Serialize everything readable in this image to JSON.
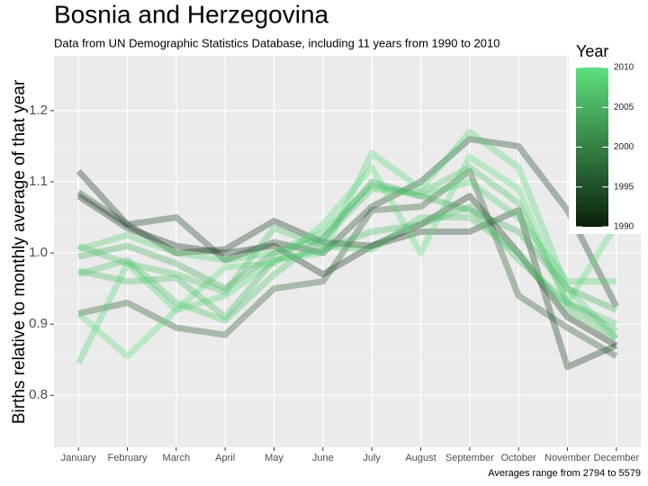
{
  "chart_data": {
    "type": "line",
    "title": "Bosnia and Herzegovina",
    "subtitle": "Data from UN Demographic Statistics Database, including 11 years from 1990 to 2010",
    "y_label": "Births relative to monthly average of that year",
    "caption": "Averages range from 2794 to 5579",
    "categories": [
      "January",
      "February",
      "March",
      "April",
      "May",
      "June",
      "July",
      "August",
      "September",
      "October",
      "November",
      "December"
    ],
    "ylim": [
      0.727,
      1.277
    ],
    "yticks": [
      0.8,
      0.9,
      {
        "value": 1.0,
        "label": "1.0"
      },
      1.1,
      1.2
    ],
    "grid": true,
    "opacity": 0.35,
    "series": [
      {
        "color": "#143018",
        "values": [
          1.08,
          1.035,
          1.01,
          1.0,
          1.01,
          0.97,
          1.01,
          1.04,
          1.08,
          1.0,
          0.91,
          0.87
        ]
      },
      {
        "color": "#1e4524",
        "values": [
          1.085,
          1.04,
          1.05,
          0.99,
          1.015,
          1.0,
          1.065,
          1.1,
          1.16,
          1.15,
          1.06,
          0.925
        ]
      },
      {
        "color": "#1a3c20",
        "values": [
          1.115,
          1.04,
          1.0,
          1.005,
          1.045,
          1.015,
          1.01,
          1.03,
          1.03,
          1.06,
          0.84,
          0.87
        ]
      },
      {
        "color": "#2a5c32",
        "values": [
          0.915,
          0.93,
          0.895,
          0.885,
          0.95,
          0.96,
          1.06,
          1.065,
          1.115,
          0.94,
          0.895,
          0.855
        ]
      },
      {
        "color": "#57d777",
        "values": [
          0.845,
          0.985,
          0.92,
          0.94,
          0.99,
          1.0,
          1.14,
          1.09,
          1.17,
          1.12,
          0.95,
          0.88
        ]
      },
      {
        "color": "#55d274",
        "values": [
          1.005,
          1.025,
          1.0,
          0.99,
          1.0,
          1.03,
          1.095,
          1.08,
          1.1,
          1.05,
          0.96,
          0.96
        ]
      },
      {
        "color": "#5bdf7c",
        "values": [
          0.915,
          0.855,
          0.92,
          0.98,
          0.985,
          1.04,
          1.12,
          1.0,
          1.135,
          1.09,
          0.93,
          1.04
        ]
      },
      {
        "color": "#4bbd67",
        "values": [
          0.975,
          0.96,
          0.965,
          0.91,
          0.99,
          1.005,
          1.03,
          1.04,
          1.065,
          0.99,
          0.93,
          0.89
        ]
      },
      {
        "color": "#50c76d",
        "values": [
          0.97,
          0.99,
          0.93,
          0.905,
          0.97,
          1.02,
          1.09,
          1.085,
          1.12,
          1.07,
          0.93,
          0.9
        ]
      },
      {
        "color": "#45b05f",
        "values": [
          0.995,
          1.01,
          0.985,
          0.95,
          1.0,
          1.02,
          1.1,
          1.08,
          1.06,
          1.03,
          0.95,
          0.92
        ]
      },
      {
        "color": "#4fc46b",
        "values": [
          1.01,
          0.985,
          0.97,
          0.945,
          1.035,
          1.01,
          1.005,
          1.05,
          1.05,
          1.0,
          0.92,
          0.88
        ]
      }
    ],
    "legend": {
      "title": "Year",
      "lim": [
        1990,
        2010
      ],
      "ticks": [
        1990,
        1995,
        2000,
        2005,
        2010
      ],
      "colors": [
        "#0a1f0a",
        "#5ee07f"
      ]
    }
  }
}
